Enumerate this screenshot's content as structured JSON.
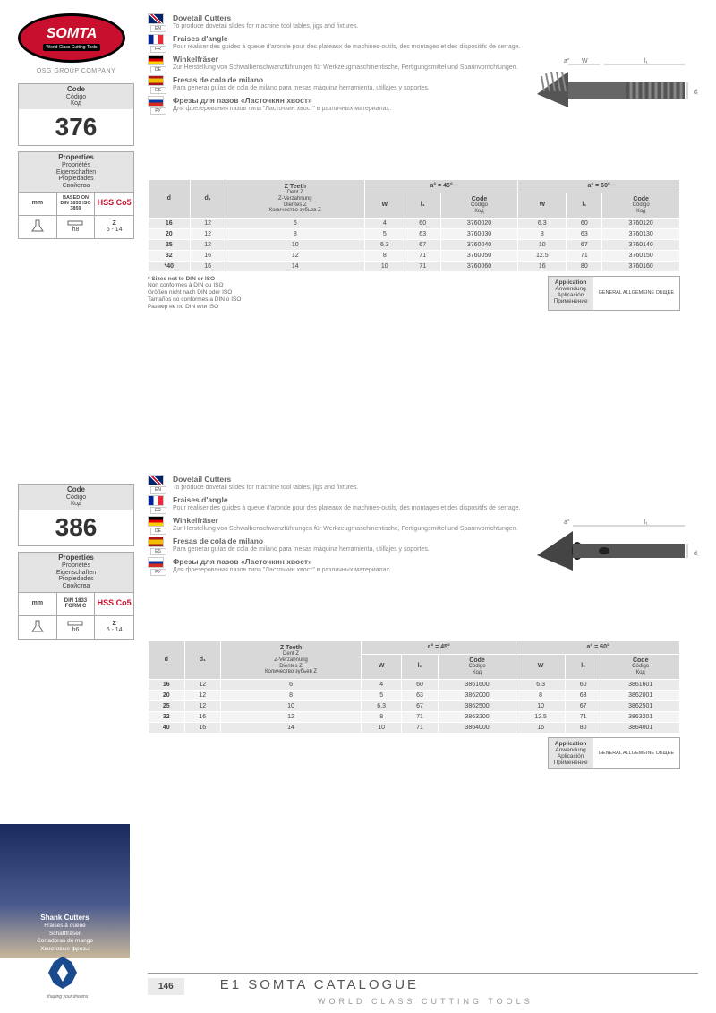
{
  "brand": {
    "name": "SOMTA",
    "tagline": "World Class Cutting Tools",
    "group": "OSG GROUP COMPANY",
    "shaping": "shaping your dreams"
  },
  "products": [
    {
      "code": "376",
      "code_labels": {
        "title": "Code",
        "l2": "Código",
        "l3": "Код"
      },
      "props_labels": {
        "title": "Properties",
        "l2": "Propriétés",
        "l3": "Eigenschaften",
        "l4": "Propiedades",
        "l5": "Свойства"
      },
      "props": {
        "mm": "mm",
        "based": "BASED ON DIN 1833 ISO 3859",
        "hss": "HSS Co5",
        "h": "h8",
        "z": "Z",
        "zval": "6 - 14"
      },
      "langs": {
        "en": {
          "code": "EN",
          "title": "Dovetail Cutters",
          "desc": "To produce dovetail slides for machine tool tables, jigs and fixtures."
        },
        "fr": {
          "code": "FR",
          "title": "Fraises d'angle",
          "desc": "Pour réaliser des guides à queue d'aronde pour des plateaux de machines-outils, des montages et des dispositifs de serrage."
        },
        "de": {
          "code": "DE",
          "title": "Winkelfräser",
          "desc": "Zur Herstellung von Schwalbenschwanzführungen für Werkzeugmaschinentische, Fertigungsmittel und Spannvorrichtungen."
        },
        "es": {
          "code": "ES",
          "title": "Fresas de cola de milano",
          "desc": "Para generar guías de cola de milano para mesas máquina herramienta, utillajes y soportes."
        },
        "ru": {
          "code": "РУ",
          "title": "Фрезы для пазов «Ласточкин хвост»",
          "desc": "Для фрезерования пазов типа \"Ласточкин хвост\" в различных материалах."
        }
      },
      "table": {
        "headers": {
          "d": "d",
          "d1": "d₁",
          "z": {
            "title": "Z Teeth",
            "subs": [
              "Dent Z",
              "Z-Verzahnung",
              "Dientes Z",
              "Количество зубьев Z"
            ]
          },
          "a45": "a° = 45°",
          "a60": "a° = 60°",
          "w": "W",
          "l1": "l₁",
          "code": {
            "title": "Code",
            "subs": [
              "Código",
              "Код"
            ]
          }
        },
        "rows": [
          {
            "d": "16",
            "d1": "12",
            "z": "6",
            "w45": "4",
            "l45": "60",
            "c45": "3760020",
            "w60": "6.3",
            "l60": "60",
            "c60": "3760120"
          },
          {
            "d": "20",
            "d1": "12",
            "z": "8",
            "w45": "5",
            "l45": "63",
            "c45": "3760030",
            "w60": "8",
            "l60": "63",
            "c60": "3760130"
          },
          {
            "d": "25",
            "d1": "12",
            "z": "10",
            "w45": "6.3",
            "l45": "67",
            "c45": "3760040",
            "w60": "10",
            "l60": "67",
            "c60": "3760140"
          },
          {
            "d": "32",
            "d1": "16",
            "z": "12",
            "w45": "8",
            "l45": "71",
            "c45": "3760050",
            "w60": "12.5",
            "l60": "71",
            "c60": "3760150"
          },
          {
            "d": "*40",
            "d1": "16",
            "z": "14",
            "w45": "10",
            "l45": "71",
            "c45": "3760060",
            "w60": "16",
            "l60": "80",
            "c60": "3760160"
          }
        ]
      },
      "note": {
        "title": "* Sizes not to DIN or ISO",
        "lines": [
          "Non conformes à DIN ou ISO",
          "Größen nicht nach DIN oder ISO",
          "Tamaños no conformes a DIN o ISO",
          "Размер не по DIN или ISO"
        ]
      },
      "app": {
        "title": "Application",
        "l2": "Anwendung",
        "l3": "Aplicación",
        "l4": "Применение",
        "gen": "GENERAL ALLGEMEINE ОБЩЕЕ"
      }
    },
    {
      "code": "386",
      "code_labels": {
        "title": "Code",
        "l2": "Código",
        "l3": "Код"
      },
      "props_labels": {
        "title": "Properties",
        "l2": "Propriétés",
        "l3": "Eigenschaften",
        "l4": "Propiedades",
        "l5": "Свойства"
      },
      "props": {
        "mm": "mm",
        "based": "DIN 1833 FORM C",
        "hss": "HSS Co5",
        "h": "h6",
        "z": "Z",
        "zval": "6 - 14"
      },
      "langs": {
        "en": {
          "code": "EN",
          "title": "Dovetail Cutters",
          "desc": "To produce dovetail slides for machine tool tables, jigs and fixtures."
        },
        "fr": {
          "code": "FR",
          "title": "Fraises d'angle",
          "desc": "Pour réaliser des guides à queue d'aronde pour des plateaux de machines-outils, des montages et des dispositifs de serrage."
        },
        "de": {
          "code": "DE",
          "title": "Winkelfräser",
          "desc": "Zur Herstellung von Schwalbenschwanzführungen für Werkzeugmaschinentische, Fertigungsmittel und Spannvorrichtungen."
        },
        "es": {
          "code": "ES",
          "title": "Fresas de cola de milano",
          "desc": "Para generar guías de cola de milano para mesas máquina herramienta, utillajes y soportes."
        },
        "ru": {
          "code": "РУ",
          "title": "Фрезы для пазов «Ласточкин хвост»",
          "desc": "Для фрезерования пазов типа \"Ласточкин хвост\" в различных материалах."
        }
      },
      "table": {
        "rows": [
          {
            "d": "16",
            "d1": "12",
            "z": "6",
            "w45": "4",
            "l45": "60",
            "c45": "3861600",
            "w60": "6.3",
            "l60": "60",
            "c60": "3861601"
          },
          {
            "d": "20",
            "d1": "12",
            "z": "8",
            "w45": "5",
            "l45": "63",
            "c45": "3862000",
            "w60": "8",
            "l60": "63",
            "c60": "3862001"
          },
          {
            "d": "25",
            "d1": "12",
            "z": "10",
            "w45": "6.3",
            "l45": "67",
            "c45": "3862500",
            "w60": "10",
            "l60": "67",
            "c60": "3862501"
          },
          {
            "d": "32",
            "d1": "16",
            "z": "12",
            "w45": "8",
            "l45": "71",
            "c45": "3863200",
            "w60": "12.5",
            "l60": "71",
            "c60": "3863201"
          },
          {
            "d": "40",
            "d1": "16",
            "z": "14",
            "w45": "10",
            "l45": "71",
            "c45": "3864000",
            "w60": "16",
            "l60": "80",
            "c60": "3864001"
          }
        ]
      },
      "app": {
        "title": "Application",
        "l2": "Anwendung",
        "l3": "Aplicación",
        "l4": "Применение",
        "gen": "GENERAL ALLGEMEINE ОБЩЕЕ"
      }
    }
  ],
  "footer_section": {
    "title": "Shank Cutters",
    "lines": [
      "Fraises à queue",
      "Schaftfräser",
      "Cortadoras de mango",
      "Хвостовые фрезы"
    ]
  },
  "footer": {
    "page": "146",
    "title": "E1 SOMTA CATALOGUE",
    "sub": "WORLD CLASS CUTTING TOOLS"
  }
}
